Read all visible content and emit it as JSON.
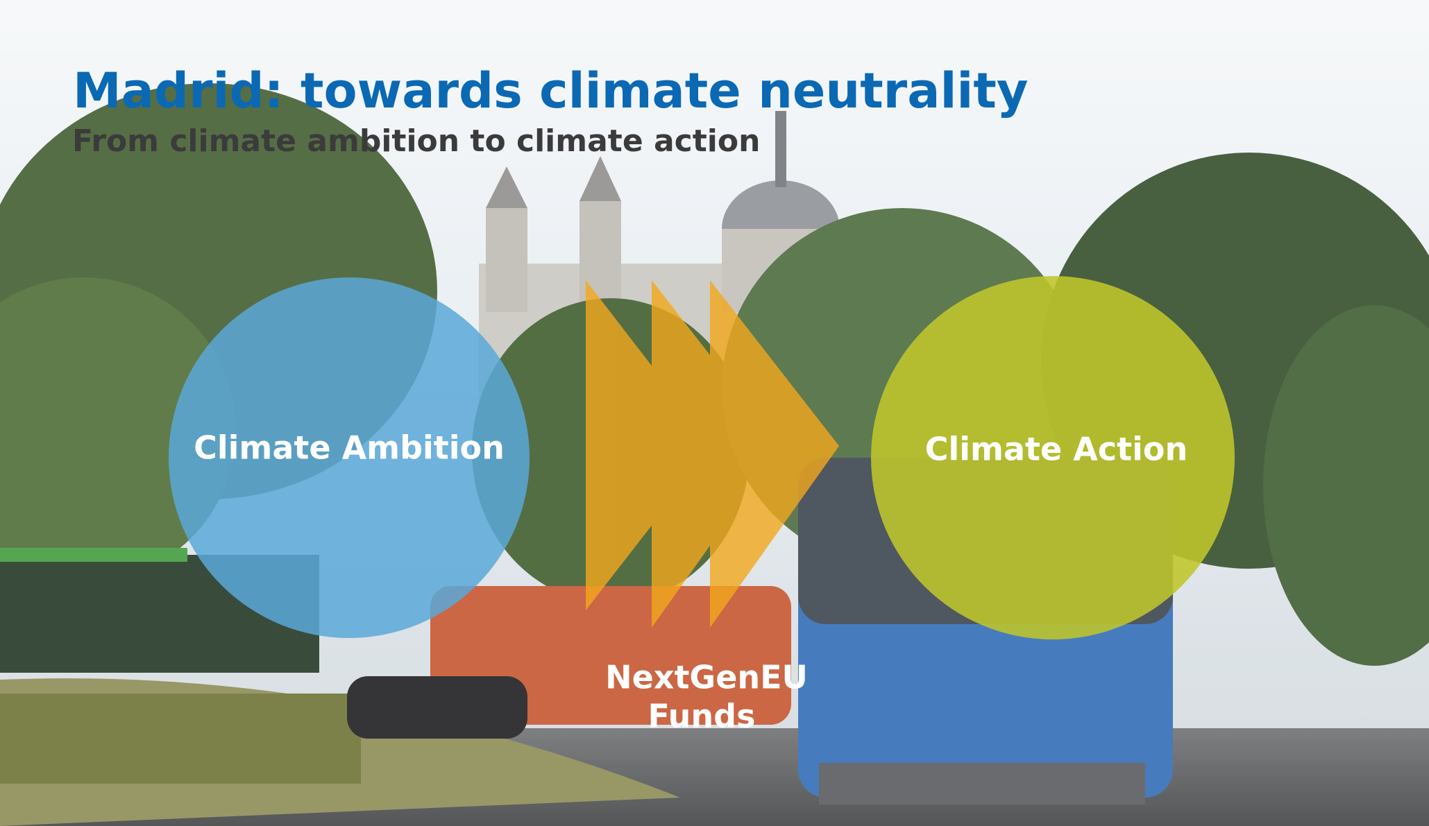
{
  "header": {
    "title": "Madrid: towards climate neutrality",
    "subtitle": "From climate ambition to climate action"
  },
  "diagram": {
    "nodes": [
      {
        "label": "Climate Ambition"
      },
      {
        "label": "Climate Action"
      }
    ],
    "connector": {
      "lines": [
        "NextGenEU",
        "Funds"
      ]
    }
  }
}
